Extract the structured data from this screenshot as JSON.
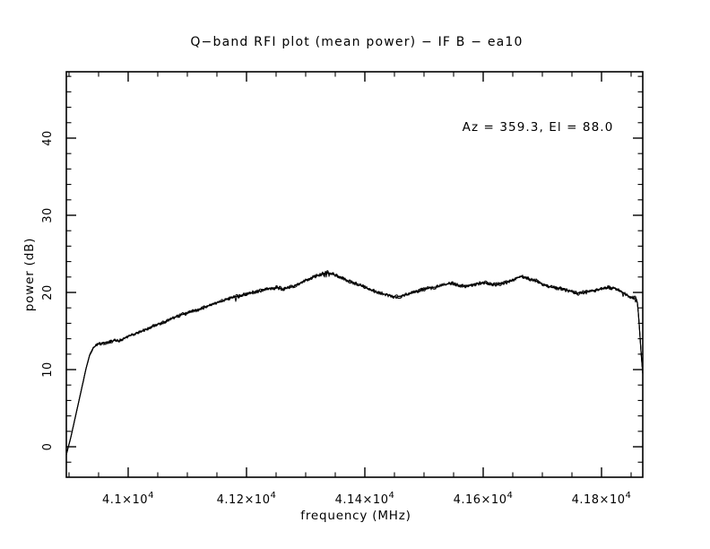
{
  "page": {
    "background": "#ffffff",
    "foreground": "#000000"
  },
  "chart_data": {
    "type": "line",
    "title": "Q−band RFI plot (mean power) − IF B − ea10",
    "annotation": "Az = 359.3, El = 88.0",
    "xlabel": "frequency (MHz)",
    "ylabel": "power (dB)",
    "xlim": [
      40895.5,
      41869.7
    ],
    "ylim": [
      -3.95,
      48.6
    ],
    "grid": false,
    "legend": null,
    "line_color": "#000000",
    "background": "#ffffff",
    "noise_band_db": 0.3,
    "x_minor_step": 50,
    "y_minor_step": 2,
    "x_ticks": [
      {
        "value": 41000,
        "mantissa": "4.1×10",
        "exp": "4"
      },
      {
        "value": 41200,
        "mantissa": "4.12×10",
        "exp": "4"
      },
      {
        "value": 41400,
        "mantissa": "4.14×10",
        "exp": "4"
      },
      {
        "value": 41600,
        "mantissa": "4.16×10",
        "exp": "4"
      },
      {
        "value": 41800,
        "mantissa": "4.18×10",
        "exp": "4"
      }
    ],
    "y_ticks": [
      {
        "value": 0,
        "label": "0"
      },
      {
        "value": 10,
        "label": "10"
      },
      {
        "value": 20,
        "label": "20"
      },
      {
        "value": 30,
        "label": "30"
      },
      {
        "value": 40,
        "label": "40"
      }
    ],
    "series": [
      {
        "name": "mean power",
        "points": [
          [
            40895.5,
            -1.0
          ],
          [
            40903,
            1.2
          ],
          [
            40912,
            4.3
          ],
          [
            40921,
            7.4
          ],
          [
            40929,
            10.2
          ],
          [
            40935,
            11.9
          ],
          [
            40941,
            12.8
          ],
          [
            40948,
            13.3
          ],
          [
            40955,
            13.4
          ],
          [
            40962,
            13.5
          ],
          [
            40970,
            13.6
          ],
          [
            40977,
            13.8
          ],
          [
            40984,
            13.7
          ],
          [
            40992,
            14.0
          ],
          [
            41000,
            14.3
          ],
          [
            41010,
            14.6
          ],
          [
            41020,
            14.9
          ],
          [
            41030,
            15.2
          ],
          [
            41040,
            15.6
          ],
          [
            41050,
            15.9
          ],
          [
            41060,
            16.1
          ],
          [
            41070,
            16.5
          ],
          [
            41080,
            16.8
          ],
          [
            41090,
            17.1
          ],
          [
            41100,
            17.3
          ],
          [
            41110,
            17.6
          ],
          [
            41120,
            17.8
          ],
          [
            41130,
            18.1
          ],
          [
            41140,
            18.4
          ],
          [
            41150,
            18.7
          ],
          [
            41160,
            18.9
          ],
          [
            41170,
            19.2
          ],
          [
            41178,
            19.4
          ],
          [
            41186,
            19.5
          ],
          [
            41195,
            19.7
          ],
          [
            41205,
            19.9
          ],
          [
            41215,
            20.1
          ],
          [
            41225,
            20.2
          ],
          [
            41235,
            20.5
          ],
          [
            41245,
            20.6
          ],
          [
            41255,
            20.6
          ],
          [
            41262,
            20.4
          ],
          [
            41270,
            20.6
          ],
          [
            41280,
            20.8
          ],
          [
            41290,
            21.2
          ],
          [
            41300,
            21.6
          ],
          [
            41310,
            21.9
          ],
          [
            41320,
            22.2
          ],
          [
            41328,
            22.4
          ],
          [
            41336,
            22.6
          ],
          [
            41344,
            22.4
          ],
          [
            41352,
            22.2
          ],
          [
            41362,
            21.9
          ],
          [
            41372,
            21.5
          ],
          [
            41382,
            21.2
          ],
          [
            41392,
            21.0
          ],
          [
            41402,
            20.6
          ],
          [
            41412,
            20.3
          ],
          [
            41422,
            20.0
          ],
          [
            41432,
            19.8
          ],
          [
            41442,
            19.6
          ],
          [
            41452,
            19.4
          ],
          [
            41460,
            19.5
          ],
          [
            41470,
            19.7
          ],
          [
            41480,
            19.9
          ],
          [
            41490,
            20.2
          ],
          [
            41500,
            20.4
          ],
          [
            41510,
            20.6
          ],
          [
            41520,
            20.7
          ],
          [
            41530,
            20.9
          ],
          [
            41540,
            21.1
          ],
          [
            41548,
            21.2
          ],
          [
            41556,
            21.0
          ],
          [
            41564,
            20.8
          ],
          [
            41572,
            20.8
          ],
          [
            41580,
            21.0
          ],
          [
            41588,
            21.1
          ],
          [
            41596,
            21.2
          ],
          [
            41604,
            21.3
          ],
          [
            41612,
            21.1
          ],
          [
            41620,
            21.0
          ],
          [
            41630,
            21.1
          ],
          [
            41640,
            21.3
          ],
          [
            41650,
            21.6
          ],
          [
            41658,
            21.9
          ],
          [
            41664,
            22.1
          ],
          [
            41672,
            21.9
          ],
          [
            41680,
            21.7
          ],
          [
            41690,
            21.5
          ],
          [
            41700,
            21.1
          ],
          [
            41710,
            20.8
          ],
          [
            41720,
            20.6
          ],
          [
            41730,
            20.5
          ],
          [
            41740,
            20.3
          ],
          [
            41750,
            20.1
          ],
          [
            41760,
            19.9
          ],
          [
            41770,
            20.0
          ],
          [
            41780,
            20.1
          ],
          [
            41790,
            20.3
          ],
          [
            41800,
            20.5
          ],
          [
            41810,
            20.6
          ],
          [
            41820,
            20.6
          ],
          [
            41828,
            20.4
          ],
          [
            41836,
            20.0
          ],
          [
            41844,
            19.6
          ],
          [
            41851,
            19.3
          ],
          [
            41858,
            19.3
          ],
          [
            41861,
            18.6
          ],
          [
            41864,
            15.5
          ],
          [
            41867,
            12.0
          ],
          [
            41869.7,
            9.5
          ]
        ]
      }
    ]
  }
}
